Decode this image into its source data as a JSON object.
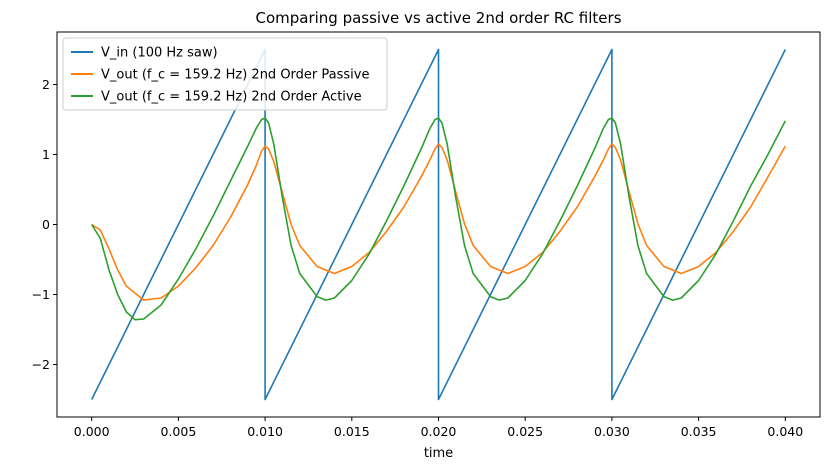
{
  "chart_data": {
    "type": "line",
    "title": "Comparing passive vs active 2nd order RC filters",
    "xlabel": "time",
    "ylabel": "",
    "xlim": [
      -0.002,
      0.042
    ],
    "ylim": [
      -2.75,
      2.75
    ],
    "xticks": [
      0.0,
      0.005,
      0.01,
      0.015,
      0.02,
      0.025,
      0.03,
      0.035,
      0.04
    ],
    "xtick_labels": [
      "0.000",
      "0.005",
      "0.010",
      "0.015",
      "0.020",
      "0.025",
      "0.030",
      "0.035",
      "0.040"
    ],
    "yticks": [
      -2,
      -1,
      0,
      1,
      2
    ],
    "ytick_labels": [
      "−2",
      "−1",
      "0",
      "1",
      "2"
    ],
    "grid": false,
    "legend_position": "top-left",
    "series": [
      {
        "name": "V_in (100 Hz saw)",
        "color": "#1f77b4",
        "x": [
          0.0,
          0.01,
          0.01,
          0.02,
          0.02,
          0.03,
          0.03,
          0.04
        ],
        "y": [
          -2.5,
          2.5,
          -2.5,
          2.5,
          -2.5,
          2.5,
          -2.5,
          2.5
        ]
      },
      {
        "name": "V_out (f_c = 159.2 Hz) 2nd Order Passive",
        "color": "#ff7f0e",
        "x": [
          0.0,
          0.0005,
          0.001,
          0.0015,
          0.002,
          0.003,
          0.004,
          0.005,
          0.006,
          0.007,
          0.008,
          0.009,
          0.0095,
          0.0098,
          0.01,
          0.0102,
          0.0105,
          0.011,
          0.0115,
          0.012,
          0.013,
          0.014,
          0.015,
          0.016,
          0.017,
          0.018,
          0.019,
          0.0195,
          0.0198,
          0.02,
          0.0202,
          0.0205,
          0.021,
          0.0215,
          0.022,
          0.023,
          0.024,
          0.025,
          0.026,
          0.027,
          0.028,
          0.029,
          0.0295,
          0.0298,
          0.03,
          0.0302,
          0.0305,
          0.031,
          0.0315,
          0.032,
          0.033,
          0.034,
          0.035,
          0.036,
          0.037,
          0.038,
          0.039,
          0.04
        ],
        "y": [
          0.0,
          -0.08,
          -0.35,
          -0.65,
          -0.88,
          -1.08,
          -1.05,
          -0.88,
          -0.62,
          -0.3,
          0.1,
          0.57,
          0.85,
          1.05,
          1.12,
          1.08,
          0.9,
          0.45,
          0.0,
          -0.3,
          -0.6,
          -0.7,
          -0.6,
          -0.4,
          -0.1,
          0.25,
          0.68,
          0.92,
          1.08,
          1.15,
          1.1,
          0.92,
          0.46,
          0.01,
          -0.3,
          -0.6,
          -0.7,
          -0.6,
          -0.4,
          -0.1,
          0.25,
          0.68,
          0.92,
          1.08,
          1.15,
          1.1,
          0.92,
          0.46,
          0.01,
          -0.3,
          -0.6,
          -0.7,
          -0.6,
          -0.4,
          -0.1,
          0.25,
          0.68,
          1.12
        ]
      },
      {
        "name": "V_out (f_c = 159.2 Hz) 2nd Order Active",
        "color": "#2ca02c",
        "x": [
          0.0,
          0.0005,
          0.001,
          0.0015,
          0.002,
          0.0025,
          0.003,
          0.004,
          0.005,
          0.006,
          0.007,
          0.008,
          0.009,
          0.0095,
          0.0098,
          0.01,
          0.0102,
          0.0105,
          0.011,
          0.0115,
          0.012,
          0.013,
          0.0135,
          0.014,
          0.015,
          0.016,
          0.017,
          0.018,
          0.019,
          0.0195,
          0.0198,
          0.02,
          0.0202,
          0.0205,
          0.021,
          0.0215,
          0.022,
          0.023,
          0.0235,
          0.024,
          0.025,
          0.026,
          0.027,
          0.028,
          0.029,
          0.0295,
          0.0298,
          0.03,
          0.0302,
          0.0305,
          0.031,
          0.0315,
          0.032,
          0.033,
          0.0335,
          0.034,
          0.035,
          0.036,
          0.037,
          0.038,
          0.039,
          0.04
        ],
        "y": [
          0.0,
          -0.2,
          -0.65,
          -1.0,
          -1.25,
          -1.36,
          -1.35,
          -1.15,
          -0.78,
          -0.35,
          0.12,
          0.62,
          1.12,
          1.38,
          1.5,
          1.52,
          1.45,
          1.15,
          0.38,
          -0.3,
          -0.7,
          -1.03,
          -1.08,
          -1.05,
          -0.8,
          -0.42,
          0.05,
          0.55,
          1.08,
          1.37,
          1.5,
          1.52,
          1.45,
          1.15,
          0.38,
          -0.3,
          -0.7,
          -1.03,
          -1.08,
          -1.05,
          -0.8,
          -0.42,
          0.05,
          0.55,
          1.08,
          1.37,
          1.5,
          1.52,
          1.45,
          1.15,
          0.38,
          -0.3,
          -0.7,
          -1.03,
          -1.08,
          -1.05,
          -0.8,
          -0.42,
          0.05,
          0.55,
          1.0,
          1.48
        ]
      }
    ]
  }
}
